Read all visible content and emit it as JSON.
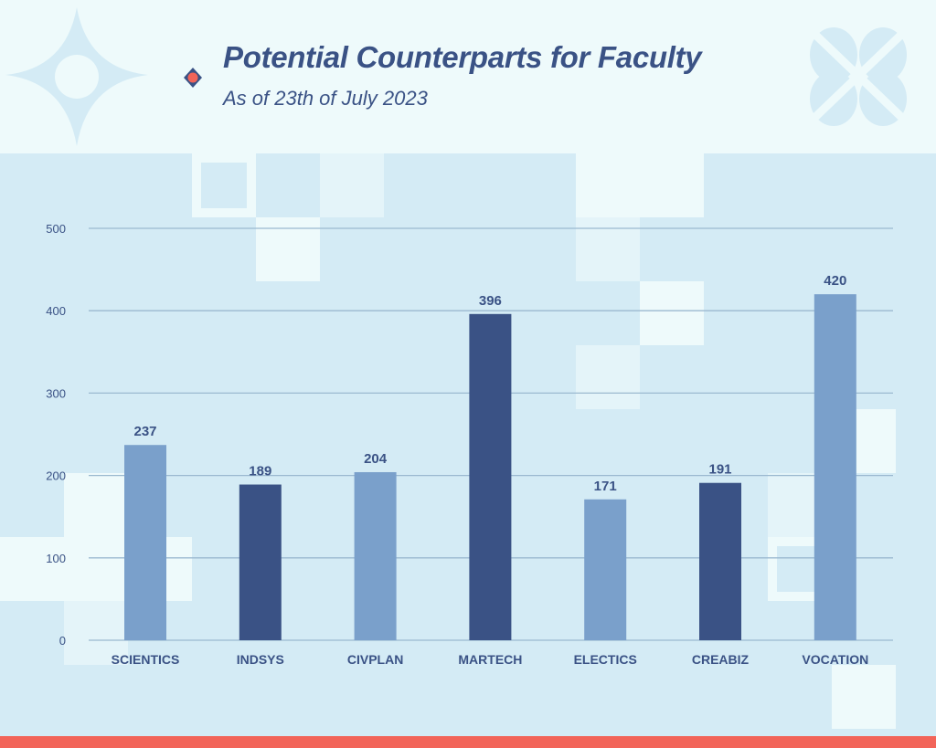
{
  "header": {
    "title": "Potential Counterparts for Faculty",
    "subtitle": "As of 23th of July 2023"
  },
  "colors": {
    "light_bar": "#7aa0cb",
    "dark_bar": "#3a5285",
    "text": "#3a5285",
    "grid": "#9bb9d0",
    "accent": "#f26459"
  },
  "chart_data": {
    "type": "bar",
    "title": "Potential Counterparts for Faculty",
    "subtitle": "As of 23th of July 2023",
    "categories": [
      "SCIENTICS",
      "INDSYS",
      "CIVPLAN",
      "MARTECH",
      "ELECTICS",
      "CREABIZ",
      "VOCATION"
    ],
    "values": [
      237,
      189,
      204,
      396,
      171,
      191,
      420
    ],
    "shades": [
      "light",
      "dark",
      "light",
      "dark",
      "light",
      "dark",
      "light"
    ],
    "yticks": [
      0,
      100,
      200,
      300,
      400,
      500
    ],
    "ylim": [
      0,
      500
    ],
    "xlabel": "",
    "ylabel": "",
    "grid": true,
    "legend": "none"
  }
}
